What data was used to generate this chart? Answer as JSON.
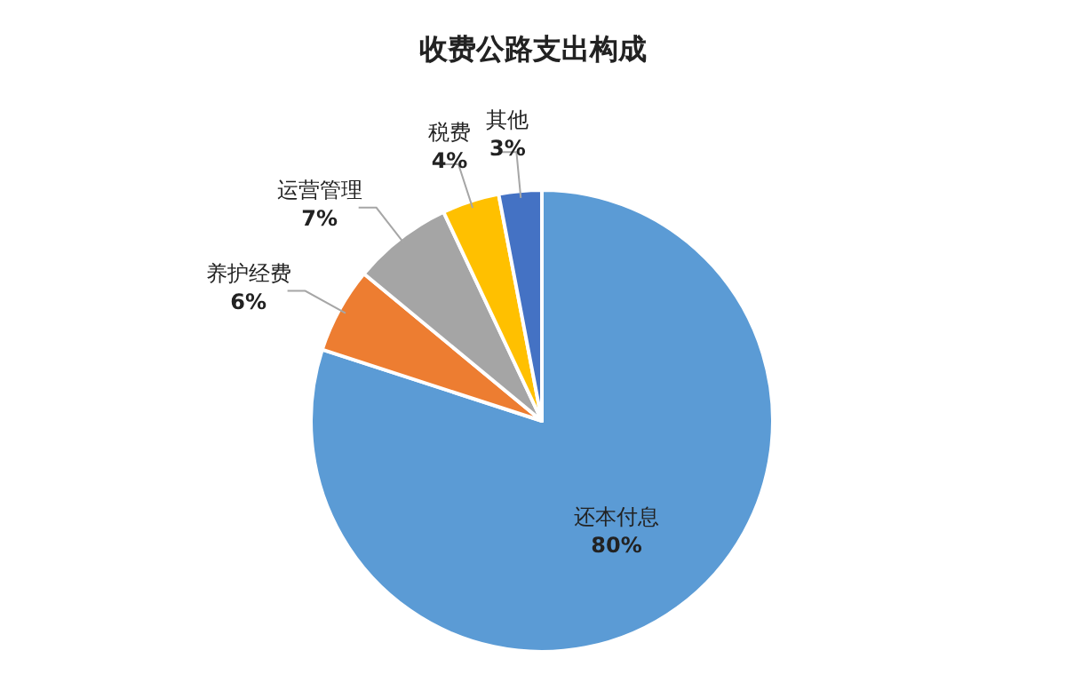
{
  "chart_data": {
    "type": "pie",
    "title": "收费公路支出构成",
    "categories": [
      "还本付息",
      "养护经费",
      "运营管理",
      "税费",
      "其他"
    ],
    "values": [
      80,
      6,
      7,
      4,
      3
    ],
    "colors": [
      "#5b9bd5",
      "#ed7d31",
      "#a5a5a5",
      "#ffc000",
      "#4472c4"
    ],
    "value_labels": [
      "80%",
      "6%",
      "7%",
      "4%",
      "3%"
    ]
  }
}
